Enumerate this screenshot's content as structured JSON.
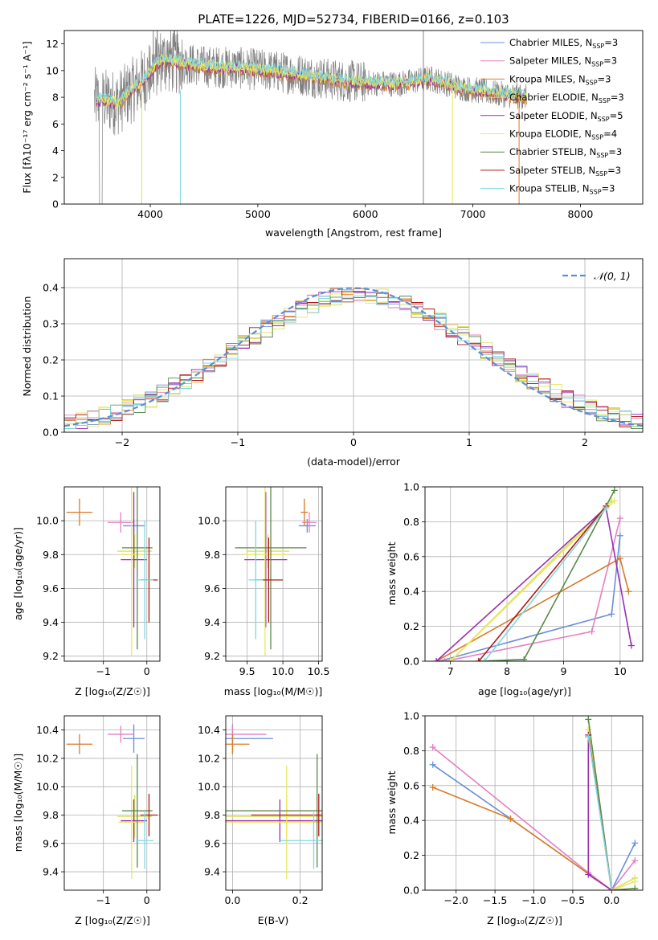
{
  "colors": {
    "chabrier_miles": "#6b8fd8",
    "salpeter_miles": "#e47fbf",
    "kroupa_miles": "#d97a2a",
    "chabrier_elodie": "#d7e25a",
    "salpeter_elodie": "#9a2fb0",
    "kroupa_elodie": "#e8e860",
    "chabrier_stelib": "#5a8a4a",
    "salpeter_stelib": "#b01818",
    "kroupa_stelib": "#7fd8e0",
    "gray": "#808080",
    "normal": "#5b8fd6"
  },
  "chart_data": [
    {
      "id": "spectrum",
      "type": "line",
      "title": "PLATE=1226, MJD=52734, FIBERID=0166, z=0.103",
      "xlabel": "wavelength [Angstrom, rest frame]",
      "ylabel": "Flux [fλ10⁻¹⁷ erg cm⁻² s⁻¹ A⁻¹]",
      "xlim": [
        3200,
        8580
      ],
      "ylim": [
        0,
        13
      ],
      "xticks": [
        "4000",
        "5000",
        "6000",
        "7000",
        "8000"
      ],
      "yticks": [
        "0",
        "2",
        "4",
        "6",
        "8",
        "10",
        "12"
      ],
      "x": [
        3500,
        3700,
        3900,
        4100,
        4300,
        4500,
        4800,
        5100,
        5400,
        5700,
        6000,
        6300,
        6600,
        6900,
        7200,
        7500
      ],
      "values": [
        7.8,
        7.6,
        9.0,
        10.8,
        10.6,
        10.3,
        10.2,
        10.0,
        9.7,
        9.3,
        9.1,
        9.0,
        9.4,
        8.7,
        8.3,
        8.0
      ],
      "legend_position": "top-right",
      "legend": [
        {
          "name": "Chabrier MILES, N",
          "sub": "SSP",
          "tail": "=3",
          "color_key": "chabrier_miles"
        },
        {
          "name": "Salpeter MILES, N",
          "sub": "SSP",
          "tail": "=3",
          "color_key": "salpeter_miles"
        },
        {
          "name": "Kroupa MILES, N",
          "sub": "SSP",
          "tail": "=3",
          "color_key": "kroupa_miles"
        },
        {
          "name": "Chabrier ELODIE, N",
          "sub": "SSP",
          "tail": "=3",
          "color_key": "chabrier_elodie"
        },
        {
          "name": "Salpeter ELODIE, N",
          "sub": "SSP",
          "tail": "=5",
          "color_key": "salpeter_elodie"
        },
        {
          "name": "Kroupa ELODIE, N",
          "sub": "SSP",
          "tail": "=4",
          "color_key": "kroupa_elodie"
        },
        {
          "name": "Chabrier STELIB, N",
          "sub": "SSP",
          "tail": "=3",
          "color_key": "chabrier_stelib"
        },
        {
          "name": "Salpeter STELIB, N",
          "sub": "SSP",
          "tail": "=3",
          "color_key": "salpeter_stelib"
        },
        {
          "name": "Kroupa STELIB, N",
          "sub": "SSP",
          "tail": "=3",
          "color_key": "kroupa_stelib"
        }
      ]
    },
    {
      "id": "residuals",
      "type": "line",
      "xlabel": "(data-model)/error",
      "ylabel": "Normed distribution",
      "xlim": [
        -2.5,
        2.5
      ],
      "ylim": [
        0,
        0.48
      ],
      "xticks": [
        "−2",
        "−1",
        "0",
        "1",
        "2"
      ],
      "yticks": [
        "0.0",
        "0.1",
        "0.2",
        "0.3",
        "0.4"
      ],
      "grid": true,
      "legend_position": "top-right",
      "series": [
        {
          "name": "𝒩(0, 1)",
          "color_key": "normal"
        }
      ]
    },
    {
      "id": "age_vs_Z",
      "type": "scatter",
      "xlabel": "Z [log₁₀(Z/Z☉)]",
      "ylabel": "age  [log₁₀(age/yr)]",
      "xlim": [
        -1.9,
        0.3
      ],
      "ylim": [
        9.17,
        10.2
      ],
      "xticks": [
        "−1",
        "0"
      ],
      "yticks": [
        "9.2",
        "9.4",
        "9.6",
        "9.8",
        "10.0"
      ]
    },
    {
      "id": "age_vs_mass",
      "type": "scatter",
      "xlabel": "mass [log₁₀(M/M☉)]",
      "xlim": [
        9.2,
        10.55
      ],
      "ylim": [
        9.17,
        10.2
      ],
      "xticks": [
        "9.5",
        "10.0",
        "10.5"
      ],
      "yticks": [
        "9.2",
        "9.4",
        "9.6",
        "9.8",
        "10.0"
      ]
    },
    {
      "id": "weight_vs_age",
      "type": "line",
      "xlabel": "age  [log₁₀(age/yr)]",
      "ylabel": "mass weight",
      "xlim": [
        6.55,
        10.4
      ],
      "ylim": [
        0,
        1.0
      ],
      "xticks": [
        "7",
        "8",
        "9",
        "10"
      ],
      "yticks": [
        "0.0",
        "0.2",
        "0.4",
        "0.6",
        "0.8",
        "1.0"
      ]
    },
    {
      "id": "mass_vs_Z",
      "type": "scatter",
      "xlabel": "Z [log₁₀(Z/Z☉)]",
      "ylabel": "mass [log₁₀(M/M☉)]",
      "xlim": [
        -1.9,
        0.3
      ],
      "ylim": [
        9.27,
        10.5
      ],
      "xticks": [
        "−1",
        "0"
      ],
      "yticks": [
        "9.4",
        "9.6",
        "9.8",
        "10.0",
        "10.2",
        "10.4"
      ]
    },
    {
      "id": "mass_vs_ebv",
      "type": "scatter",
      "xlabel": "E(B-V)",
      "xlim": [
        -0.02,
        0.265
      ],
      "ylim": [
        9.27,
        10.5
      ],
      "xticks": [
        "0.0",
        "0.2"
      ],
      "yticks": [
        "9.4",
        "9.6",
        "9.8",
        "10.0",
        "10.2",
        "10.4"
      ]
    },
    {
      "id": "weight_vs_Z",
      "type": "line",
      "xlabel": "Z [log₁₀(Z/Z☉)]",
      "ylabel": "mass weight",
      "xlim": [
        -2.4,
        0.4
      ],
      "ylim": [
        0,
        1.0
      ],
      "xticks": [
        "−2.0",
        "−1.5",
        "−1.0",
        "−0.5",
        "0.0"
      ],
      "yticks": [
        "0.0",
        "0.2",
        "0.4",
        "0.6",
        "0.8",
        "1.0"
      ]
    }
  ],
  "models": [
    {
      "key": "chabrier_miles",
      "age": 9.97,
      "Z": -0.3,
      "age_err": 0.04,
      "Z_err": 0.25,
      "mass": 10.34,
      "mass_err": 0.1,
      "mass_xerr": 0.12,
      "ebv": 0.0,
      "ebv_err": 0.05,
      "wa": [
        [
          6.8,
          0.0
        ],
        [
          9.85,
          0.27
        ],
        [
          10.0,
          0.72
        ]
      ],
      "wz": [
        [
          -2.3,
          0.72
        ],
        [
          -1.3,
          0.41
        ],
        [
          0.0,
          0.0
        ],
        [
          0.3,
          0.27
        ]
      ]
    },
    {
      "key": "salpeter_miles",
      "age": 9.99,
      "Z": -0.6,
      "age_err": 0.06,
      "Z_err": 0.3,
      "mass": 10.37,
      "mass_err": 0.06,
      "mass_xerr": 0.1,
      "ebv": 0.0,
      "ebv_err": 0.1,
      "wa": [
        [
          6.9,
          0.0
        ],
        [
          9.5,
          0.17
        ],
        [
          10.0,
          0.82
        ]
      ],
      "wz": [
        [
          -2.3,
          0.82
        ],
        [
          -0.3,
          0.1
        ],
        [
          0.0,
          0.0
        ],
        [
          0.3,
          0.17
        ]
      ]
    },
    {
      "key": "kroupa_miles",
      "age": 10.05,
      "Z": -1.55,
      "age_err": 0.08,
      "Z_err": 0.3,
      "mass": 10.3,
      "mass_err": 0.07,
      "mass_xerr": 0.05,
      "ebv": 0.0,
      "ebv_err": 0.06,
      "wa": [
        [
          6.75,
          0.0
        ],
        [
          10.0,
          0.59
        ],
        [
          10.15,
          0.4
        ]
      ],
      "wz": [
        [
          -2.3,
          0.59
        ],
        [
          -1.3,
          0.41
        ],
        [
          0.0,
          0.0
        ]
      ]
    },
    {
      "key": "chabrier_elodie",
      "age": 9.82,
      "Z": -0.28,
      "age_err": 0.1,
      "Z_err": 0.4,
      "mass": 9.79,
      "mass_err": 0.15,
      "mass_xerr": 0.3,
      "ebv": 0.16,
      "ebv_err": 0.3,
      "wa": [
        [
          7.0,
          0.0
        ],
        [
          9.85,
          0.92
        ]
      ],
      "wz": [
        [
          -0.3,
          0.92
        ],
        [
          0.0,
          0.0
        ],
        [
          0.3,
          0.07
        ]
      ]
    },
    {
      "key": "salpeter_elodie",
      "age": 9.77,
      "Z": -0.3,
      "age_err": 0.4,
      "Z_err": 0.3,
      "mass": 9.76,
      "mass_err": 0.15,
      "mass_xerr": 0.3,
      "ebv": 0.14,
      "ebv_err": 0.3,
      "wa": [
        [
          6.75,
          0.0
        ],
        [
          9.75,
          0.88
        ],
        [
          10.2,
          0.09
        ]
      ],
      "wz": [
        [
          -0.3,
          0.88
        ],
        [
          -0.3,
          0.09
        ],
        [
          0.0,
          0.0
        ]
      ]
    },
    {
      "key": "kroupa_elodie",
      "age": 9.8,
      "Z": -0.35,
      "age_err": 0.6,
      "Z_err": 0.3,
      "mass": 9.75,
      "mass_err": 0.4,
      "mass_xerr": 0.3,
      "ebv": 0.16,
      "ebv_err": 0.35,
      "wa": [
        [
          7.0,
          0.0
        ],
        [
          9.9,
          0.92
        ]
      ],
      "wz": [
        [
          -0.3,
          0.92
        ],
        [
          0.0,
          0.0
        ],
        [
          0.3,
          0.05
        ]
      ]
    },
    {
      "key": "chabrier_stelib",
      "age": 9.84,
      "Z": -0.22,
      "age_err": 0.6,
      "Z_err": 0.35,
      "mass": 9.83,
      "mass_err": 0.4,
      "mass_xerr": 0.5,
      "ebv": 0.25,
      "ebv_err": 0.35,
      "wa": [
        [
          7.5,
          0.0
        ],
        [
          8.3,
          0.01
        ],
        [
          9.9,
          0.98
        ]
      ],
      "wz": [
        [
          -0.3,
          0.98
        ],
        [
          0.0,
          0.0
        ],
        [
          0.3,
          0.01
        ]
      ]
    },
    {
      "key": "salpeter_stelib",
      "age": 9.65,
      "Z": 0.05,
      "age_err": 0.25,
      "Z_err": 0.2,
      "mass": 9.8,
      "mass_err": 0.15,
      "mass_xerr": 0.2,
      "ebv": 0.255,
      "ebv_err": 0.2,
      "wa": [
        [
          7.5,
          0.0
        ],
        [
          9.75,
          0.89
        ]
      ],
      "wz": [
        [
          -0.3,
          0.89
        ],
        [
          0.0,
          0.0
        ]
      ]
    },
    {
      "key": "kroupa_stelib",
      "age": 9.65,
      "Z": -0.05,
      "age_err": 0.35,
      "Z_err": 0.2,
      "mass": 9.62,
      "mass_err": 0.2,
      "mass_xerr": 0.1,
      "ebv": 0.24,
      "ebv_err": 0.2,
      "wa": [
        [
          7.6,
          0.0
        ],
        [
          9.75,
          0.88
        ]
      ],
      "wz": [
        [
          -0.3,
          0.88
        ],
        [
          0.0,
          0.0
        ]
      ]
    }
  ]
}
